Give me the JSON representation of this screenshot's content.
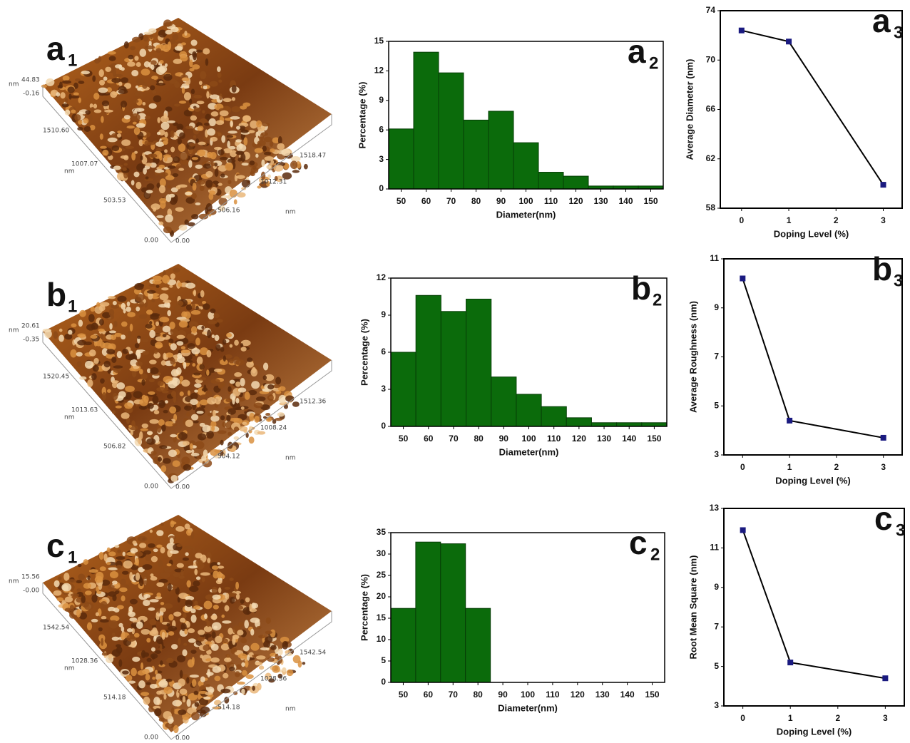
{
  "afm_panels": [
    {
      "panel_label": "a",
      "panel_sub": "1",
      "unit": "nm",
      "z_labels": [
        "44.83",
        "-0.16"
      ],
      "y_labels": [
        "0.00",
        "503.53",
        "1007.07",
        "1510.60"
      ],
      "x_labels": [
        "0.00",
        "506.16",
        "1012.31",
        "1518.47"
      ]
    },
    {
      "panel_label": "b",
      "panel_sub": "1",
      "unit": "nm",
      "z_labels": [
        "20.61",
        "-0.35"
      ],
      "y_labels": [
        "0.00",
        "506.82",
        "1013.63",
        "1520.45"
      ],
      "x_labels": [
        "0.00",
        "504.12",
        "1008.24",
        "1512.36"
      ]
    },
    {
      "panel_label": "c",
      "panel_sub": "1",
      "unit": "nm",
      "z_labels": [
        "15.56",
        "-0.00"
      ],
      "y_labels": [
        "0.00",
        "514.18",
        "1028.36",
        "1542.54"
      ],
      "x_labels": [
        "0.00",
        "514.18",
        "1028.36",
        "1542.54"
      ]
    }
  ],
  "chart_data": [
    {
      "type": "histogram",
      "panel_label": "a",
      "panel_sub": "2",
      "x_label": "Diameter(nm)",
      "y_label": "Percentage (%)",
      "color": "#0b6b0b",
      "bins": [
        45,
        55,
        65,
        75,
        85,
        95,
        105,
        115,
        125,
        135,
        145,
        155
      ],
      "values": [
        6.1,
        13.9,
        11.8,
        7.0,
        7.9,
        4.7,
        1.7,
        1.3,
        0.3,
        0.3,
        0.3
      ],
      "xlim": [
        45,
        155
      ],
      "xticks": [
        50,
        60,
        70,
        80,
        90,
        100,
        110,
        120,
        130,
        140,
        150
      ],
      "ylim": [
        0,
        15
      ],
      "yticks": [
        0,
        3,
        6,
        9,
        12,
        15
      ]
    },
    {
      "type": "line",
      "panel_label": "a",
      "panel_sub": "3",
      "x_label": "Doping Level (%)",
      "y_label": "Average Diameter (nm)",
      "color": "#1a1a80",
      "x": [
        0,
        1,
        3
      ],
      "values": [
        72.4,
        71.5,
        59.9
      ],
      "xlim": [
        -0.45,
        3.4
      ],
      "xticks": [
        0,
        1,
        2,
        3
      ],
      "ylim": [
        58,
        74
      ],
      "yticks": [
        58,
        62,
        66,
        70,
        74
      ]
    },
    {
      "type": "histogram",
      "panel_label": "b",
      "panel_sub": "2",
      "x_label": "Diameter(nm)",
      "y_label": "Percentage (%)",
      "color": "#0b6b0b",
      "bins": [
        45,
        55,
        65,
        75,
        85,
        95,
        105,
        115,
        125,
        135,
        145,
        155
      ],
      "values": [
        6.0,
        10.6,
        9.3,
        10.3,
        4.0,
        2.6,
        1.6,
        0.7,
        0.3,
        0.3,
        0.3
      ],
      "xlim": [
        45,
        155
      ],
      "xticks": [
        50,
        60,
        70,
        80,
        90,
        100,
        110,
        120,
        130,
        140,
        150
      ],
      "ylim": [
        0,
        12
      ],
      "yticks": [
        0,
        3,
        6,
        9,
        12
      ]
    },
    {
      "type": "line",
      "panel_label": "b",
      "panel_sub": "3",
      "x_label": "Doping Level (%)",
      "y_label": "Average Roughness (nm)",
      "color": "#1a1a80",
      "x": [
        0,
        1,
        3
      ],
      "values": [
        10.2,
        4.4,
        3.7
      ],
      "xlim": [
        -0.4,
        3.4
      ],
      "xticks": [
        0,
        1,
        2,
        3
      ],
      "ylim": [
        3,
        11
      ],
      "yticks": [
        3,
        5,
        7,
        9,
        11
      ]
    },
    {
      "type": "histogram",
      "panel_label": "c",
      "panel_sub": "2",
      "x_label": "Diameter(nm)",
      "y_label": "Percentage (%)",
      "color": "#0b6b0b",
      "bins": [
        45,
        55,
        65,
        75,
        85
      ],
      "values": [
        17.3,
        32.8,
        32.4,
        17.3
      ],
      "xlim": [
        45,
        155
      ],
      "xticks": [
        50,
        60,
        70,
        80,
        90,
        100,
        110,
        120,
        130,
        140,
        150
      ],
      "ylim": [
        0,
        35
      ],
      "yticks": [
        0,
        5,
        10,
        15,
        20,
        25,
        30,
        35
      ]
    },
    {
      "type": "line",
      "panel_label": "c",
      "panel_sub": "3",
      "x_label": "Doping Level (%)",
      "y_label": "Root Mean Square (nm)",
      "color": "#1a1a80",
      "x": [
        0,
        1,
        3
      ],
      "values": [
        11.9,
        5.2,
        4.4
      ],
      "xlim": [
        -0.4,
        3.4
      ],
      "xticks": [
        0,
        1,
        2,
        3
      ],
      "ylim": [
        3,
        13
      ],
      "yticks": [
        3,
        5,
        7,
        9,
        11,
        13
      ]
    }
  ]
}
